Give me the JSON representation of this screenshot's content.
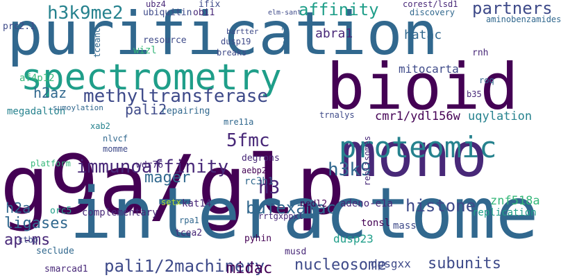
{
  "words": {
    "purification": "purification",
    "bioid": "bioid",
    "g9a": "g9a/glp",
    "mono": "mono",
    "interactome": "interactome",
    "spectrometry": "spectrometry",
    "proteomic": "proteomic",
    "methyltransferase": "methyltransferase",
    "immunoaffinity": "immunoaffinity",
    "pali12machinery": "pali1/2machinery",
    "h3k9me2": "h3k9me2",
    "affinity": "affinity",
    "partners": "partners",
    "fmc": "5fmc",
    "mager": "mager",
    "h3": "h3",
    "h3k9": "h3k9",
    "bufexamac": "bufexamac",
    "histone": "histone",
    "subunits": "subunits",
    "nucleosome": "nucleosome",
    "apms": "ap-ms",
    "ligases": "ligases",
    "h2a": "h2a",
    "h2az": "h2az",
    "midac": "midac",
    "pali2": "pali2",
    "mitocarta": "mitocarta",
    "hatac": "hatac",
    "abra1": "abra1",
    "cmr1": "cmr1/ydl156w",
    "uqylation": "uqylation",
    "znf518a": "znf518a",
    "dpsgxx": "dpsgxx",
    "dusp23": "dusp23",
    "adeno": "adeno-e1a",
    "mass": "mass",
    "tonsl": "tonsl",
    "replication": "replication",
    "rc3h1": "rc3h1",
    "kat14": "kat14",
    "setx": "setx",
    "complementary": "complementary",
    "orc5": "orc5",
    "rrtgxppxl": "rrtgxppxl",
    "pyhin": "pyhin",
    "musd": "musd",
    "nedl2": "nedl2",
    "tcea2": "tcea2",
    "rpa1": "rpa1",
    "smarcad1": "smarcad1",
    "seclude": "seclude",
    "ctbp": "ctbp",
    "platform": "platform",
    "megadalton": "megadalton",
    "af4p12": "af4p12",
    "sumoylation": "sumoylation",
    "xab2": "xab2",
    "nlvcf": "nlvcf",
    "momme": "momme",
    "wdr76": "wdr76",
    "aebp2": "aebp2",
    "degrons": "degrons",
    "mre11a": "mre11a",
    "repairing": "repairing",
    "breaks": "breaks",
    "dusp19": "dusp19",
    "bartter": "bartter",
    "resource": "resource",
    "wizl": "wizl",
    "tceanc": "tceanc",
    "ubz4": "ubz4",
    "ubiquitin": "ubiquitin",
    "ifix": "ifix",
    "obi1": "obi1",
    "elmsant": "elm-sant",
    "corest": "corest/lsd1",
    "discovery": "discovery",
    "aminobenzamides": "aminobenzamides",
    "prc21": "prc2.1",
    "rnh": "rnh",
    "b35": "b35",
    "roq": "roq",
    "trnalys": "trnalys",
    "replisomes": "replisomes",
    "orc3": "orc3"
  }
}
